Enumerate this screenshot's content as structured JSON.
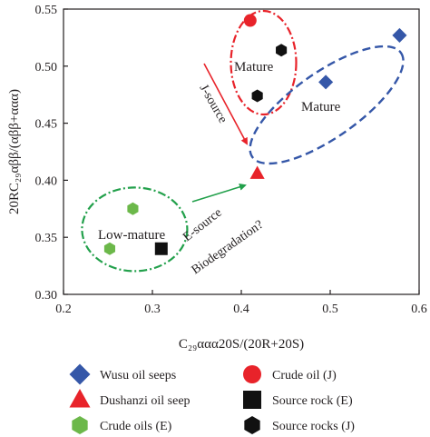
{
  "chart_data": {
    "type": "scatter",
    "title": "",
    "xlabel": "C₂₉ααα20S/(20R+20S)",
    "ylabel": "20RC₂₉αββ/(αββ+ααα)",
    "xlim": [
      0.2,
      0.6
    ],
    "ylim": [
      0.3,
      0.55
    ],
    "x_ticks": [
      "0.2",
      "0.3",
      "0.4",
      "0.5",
      "0.6"
    ],
    "y_ticks": [
      "0.30",
      "0.35",
      "0.40",
      "0.45",
      "0.50",
      "0.55"
    ],
    "grid": false,
    "legend_position": "bottom",
    "series": [
      {
        "name": "Wusu oil seeps",
        "marker": "diamond",
        "color": "#3557a8",
        "points": [
          {
            "x": 0.495,
            "y": 0.486
          },
          {
            "x": 0.578,
            "y": 0.527
          }
        ]
      },
      {
        "name": "Crude oil (J)",
        "marker": "circle",
        "color": "#e8232a",
        "points": [
          {
            "x": 0.41,
            "y": 0.54
          }
        ]
      },
      {
        "name": "Dushanzi oil seep",
        "marker": "triangle",
        "color": "#e8232a",
        "points": [
          {
            "x": 0.418,
            "y": 0.406
          }
        ]
      },
      {
        "name": "Source rock (E)",
        "marker": "square",
        "color": "#111111",
        "points": [
          {
            "x": 0.31,
            "y": 0.34
          }
        ]
      },
      {
        "name": "Crude oils (E)",
        "marker": "hexagon",
        "color": "#6cb84a",
        "points": [
          {
            "x": 0.278,
            "y": 0.375
          },
          {
            "x": 0.252,
            "y": 0.34
          }
        ]
      },
      {
        "name": "Source rocks (J)",
        "marker": "hexagon",
        "color": "#111111",
        "points": [
          {
            "x": 0.445,
            "y": 0.514
          },
          {
            "x": 0.418,
            "y": 0.474
          }
        ]
      }
    ],
    "annotations": {
      "mature_red": "Mature",
      "mature_blue": "Mature",
      "low_mature": "Low-mature",
      "j_source": "J-source",
      "e_source": "E-source",
      "biodegradation": "Biodegradation?"
    },
    "colors": {
      "blue": "#3557a8",
      "red": "#e8232a",
      "green": "#22a04b",
      "black": "#111111",
      "axis": "#231f20"
    }
  }
}
